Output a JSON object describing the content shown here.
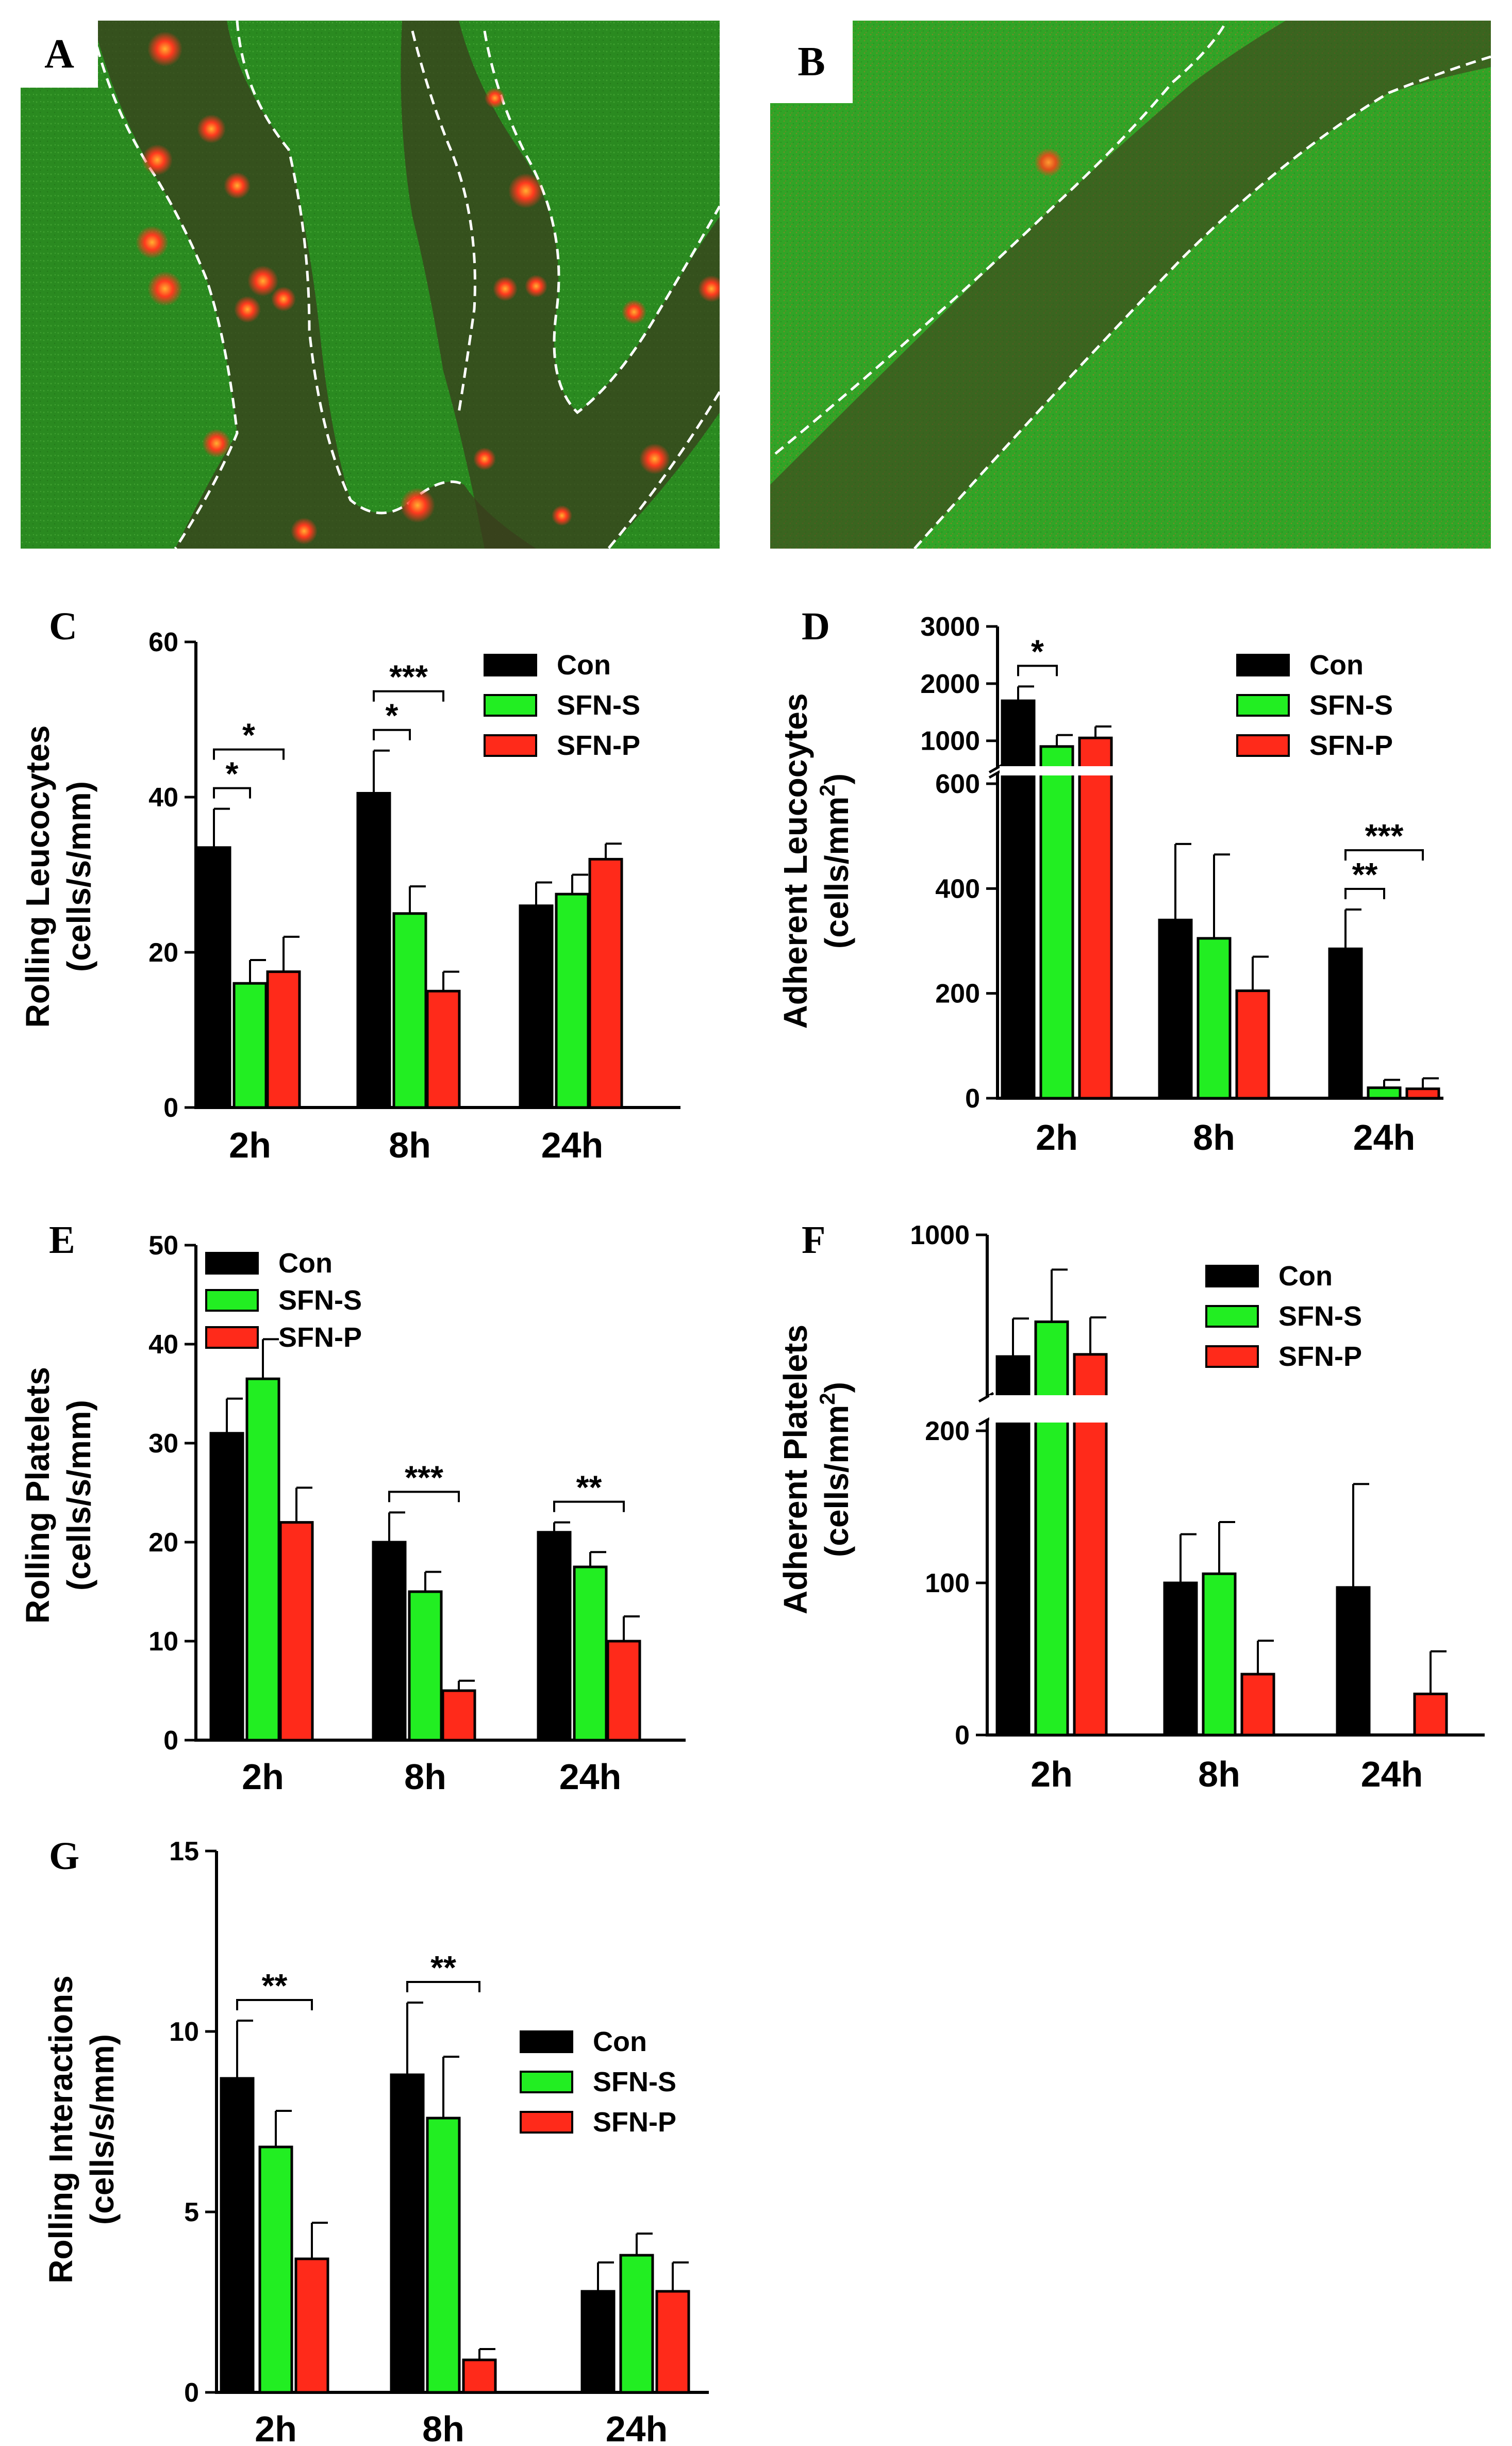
{
  "colors": {
    "con": "#000000",
    "sfn_s": "#22ee22",
    "sfn_p": "#ff2a1a",
    "tissue": "#2a8a20",
    "vessel": "#3a3a1a",
    "cell": "#ff3a1e"
  },
  "images": [
    {
      "label": "A",
      "kind": "intravital-microscopy",
      "vessels": "branched"
    },
    {
      "label": "B",
      "kind": "intravital-microscopy",
      "vessels": "single"
    }
  ],
  "chart_data": [
    {
      "panel": "C",
      "type": "bar",
      "ylabel_line1": "Rolling Leucocytes",
      "ylabel_line2": "(cells/s/mm)",
      "categories": [
        "2h",
        "8h",
        "24h"
      ],
      "ylim": [
        0,
        60
      ],
      "yticks": [
        "0",
        "20",
        "40",
        "60"
      ],
      "series": [
        {
          "name": "Con",
          "color": "#000000",
          "values": [
            33.5,
            40.5,
            26
          ],
          "errors": [
            5,
            5.5,
            3
          ]
        },
        {
          "name": "SFN-S",
          "color": "#22ee22",
          "values": [
            16,
            25,
            27.5
          ],
          "errors": [
            3,
            3.5,
            2.5
          ]
        },
        {
          "name": "SFN-P",
          "color": "#ff2a1a",
          "values": [
            17.5,
            15,
            32
          ],
          "errors": [
            4.5,
            2.5,
            2
          ]
        }
      ],
      "significance": [
        {
          "category": 0,
          "from": 0,
          "to": 1,
          "label": "*"
        },
        {
          "category": 0,
          "from": 0,
          "to": 2,
          "label": "*"
        },
        {
          "category": 1,
          "from": 0,
          "to": 1,
          "label": "*"
        },
        {
          "category": 1,
          "from": 0,
          "to": 2,
          "label": "***"
        }
      ]
    },
    {
      "panel": "D",
      "type": "bar",
      "ylabel_line1": "Adherent Leucocytes",
      "ylabel_line2": "(cells/mm",
      "ylabel_sup": "2",
      "ylabel_end": ")",
      "categories": [
        "2h",
        "8h",
        "24h"
      ],
      "ylim": [
        0,
        3000
      ],
      "y_break": [
        600,
        700
      ],
      "yticks": [
        "0",
        "200",
        "400",
        "600",
        "1000",
        "2000",
        "3000"
      ],
      "series": [
        {
          "name": "Con",
          "color": "#000000",
          "values": [
            1700,
            340,
            285
          ],
          "errors": [
            250,
            145,
            75
          ]
        },
        {
          "name": "SFN-S",
          "color": "#22ee22",
          "values": [
            900,
            305,
            20
          ],
          "errors": [
            200,
            160,
            15
          ]
        },
        {
          "name": "SFN-P",
          "color": "#ff2a1a",
          "values": [
            1050,
            205,
            18
          ],
          "errors": [
            200,
            65,
            20
          ]
        }
      ],
      "significance": [
        {
          "category": 0,
          "from": 0,
          "to": 1,
          "label": "*"
        },
        {
          "category": 2,
          "from": 0,
          "to": 1,
          "label": "**"
        },
        {
          "category": 2,
          "from": 0,
          "to": 2,
          "label": "***"
        }
      ]
    },
    {
      "panel": "E",
      "type": "bar",
      "ylabel_line1": "Rolling Platelets",
      "ylabel_line2": "(cells/s/mm)",
      "categories": [
        "2h",
        "8h",
        "24h"
      ],
      "ylim": [
        0,
        50
      ],
      "yticks": [
        "0",
        "10",
        "20",
        "30",
        "40",
        "50"
      ],
      "series": [
        {
          "name": "Con",
          "color": "#000000",
          "values": [
            31,
            20,
            21
          ],
          "errors": [
            3.5,
            3,
            1
          ]
        },
        {
          "name": "SFN-S",
          "color": "#22ee22",
          "values": [
            36.5,
            15,
            17.5
          ],
          "errors": [
            4,
            2,
            1.5
          ]
        },
        {
          "name": "SFN-P",
          "color": "#ff2a1a",
          "values": [
            22,
            5,
            10
          ],
          "errors": [
            3.5,
            1,
            2.5
          ]
        }
      ],
      "significance": [
        {
          "category": 1,
          "from": 0,
          "to": 2,
          "label": "***"
        },
        {
          "category": 2,
          "from": 0,
          "to": 2,
          "label": "**"
        }
      ]
    },
    {
      "panel": "F",
      "type": "bar",
      "ylabel_line1": "Adherent Platelets",
      "ylabel_line2": "(cells/mm",
      "ylabel_sup": "2",
      "ylabel_end": ")",
      "categories": [
        "2h",
        "8h",
        "24h"
      ],
      "ylim": [
        0,
        1000
      ],
      "y_break": [
        200,
        300
      ],
      "yticks": [
        "0",
        "100",
        "200",
        "1000"
      ],
      "series": [
        {
          "name": "Con",
          "color": "#000000",
          "values": [
            440,
            100,
            97
          ],
          "errors": [
            175,
            32,
            68
          ]
        },
        {
          "name": "SFN-S",
          "color": "#22ee22",
          "values": [
            600,
            106,
            0
          ],
          "errors": [
            240,
            34,
            0
          ]
        },
        {
          "name": "SFN-P",
          "color": "#ff2a1a",
          "values": [
            450,
            40,
            27
          ],
          "errors": [
            170,
            22,
            28
          ]
        }
      ],
      "significance": []
    },
    {
      "panel": "G",
      "type": "bar",
      "ylabel_line1": "Rolling Interactions",
      "ylabel_line2": "(cells/s/mm)",
      "categories": [
        "2h",
        "8h",
        "24h"
      ],
      "ylim": [
        0,
        15
      ],
      "yticks": [
        "0",
        "5",
        "10",
        "15"
      ],
      "series": [
        {
          "name": "Con",
          "color": "#000000",
          "values": [
            8.7,
            8.8,
            2.8
          ],
          "errors": [
            1.6,
            2,
            0.8
          ]
        },
        {
          "name": "SFN-S",
          "color": "#22ee22",
          "values": [
            6.8,
            7.6,
            3.8
          ],
          "errors": [
            1,
            1.7,
            0.6
          ]
        },
        {
          "name": "SFN-P",
          "color": "#ff2a1a",
          "values": [
            3.7,
            0.9,
            2.8
          ],
          "errors": [
            1,
            0.3,
            0.8
          ]
        }
      ],
      "significance": [
        {
          "category": 0,
          "from": 0,
          "to": 2,
          "label": "**"
        },
        {
          "category": 1,
          "from": 0,
          "to": 2,
          "label": "**"
        }
      ]
    }
  ]
}
